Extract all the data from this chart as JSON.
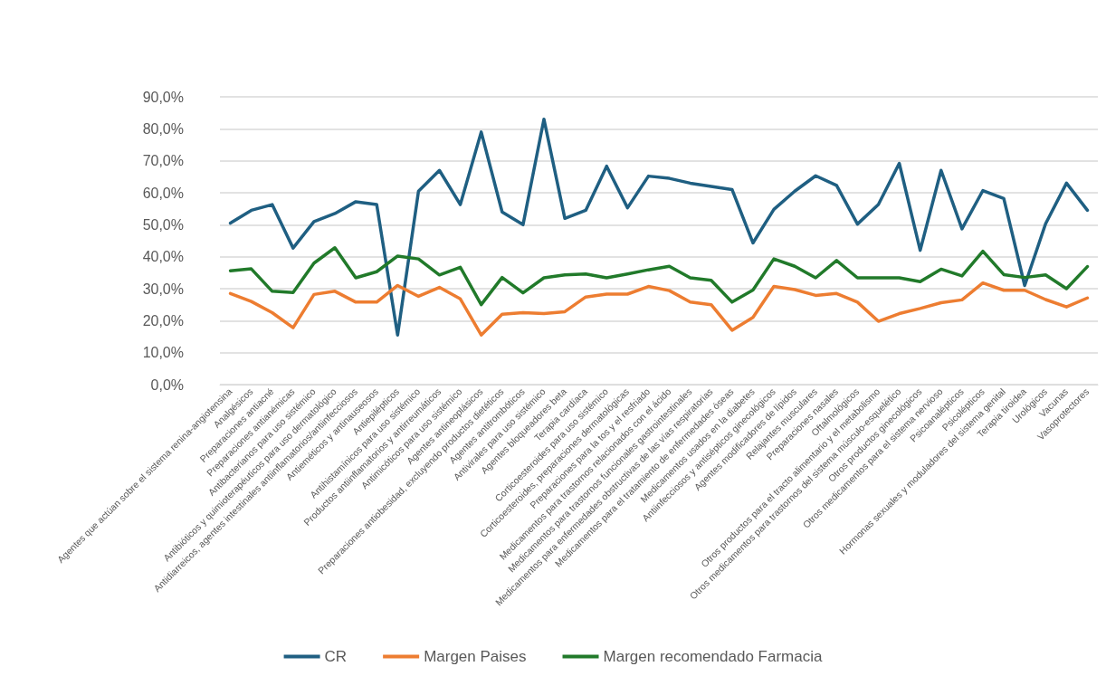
{
  "chart_data": {
    "type": "line",
    "categories": [
      "Agentes que actúan sobre el sistema renina-angiotensina",
      "Analgésicos",
      "Preparaciones antiacné",
      "Preparaciones antianémicas",
      "Antibacterianos para uso sistémico",
      "Antibióticos y quimioterapéuticos para uso dermatológico",
      "Antidiarreicos, agentes intestinales antiinflamatorios/antiinfecciosos",
      "Antieméticos y antinauseosos",
      "Antiepilépticos",
      "Antihistamínicos para uso sistémico",
      "Productos antiinflamatorios y antirreumáticos",
      "Antimicóticos para uso sistémico",
      "Agentes antineoplásicos",
      "Preparaciones antiobesidad, excluyendo productos dietéticos",
      "Agentes antitrombóticos",
      "Antivirales para uso sistémico",
      "Agentes bloqueadores beta",
      "Terapia cardíaca",
      "Corticoesteroides para uso sistémico",
      "Corticoesteroides, preparaciones dermatológicas",
      "Preparaciones para la tos y el resfriado",
      "Medicamentos para trastornos relacionados con el ácido",
      "Medicamentos para trastornos funcionales gastrointestinales",
      "Medicamentos para enfermedades obstructivas de las vías respiratorias",
      "Medicamentos para el tratamiento de enfermedades óseas",
      "Medicamentos usados en la diabetes",
      "Antiinfecciosos y antisépticos ginecológicos",
      "Agentes modificadores de lípidos",
      "Relajantes musculares",
      "Preparaciones nasales",
      "Oftalmológicos",
      "Otros productos para el tracto alimentario y el metabolismo",
      "Otros medicamentos para trastornos del sistema músculo-esquelético",
      "Otros productos ginecológicos",
      "Otros medicamentos para el sistema nervioso",
      "Psicoanalépticos",
      "Psicolépticos",
      "Hormonas sexuales y moduladores del sistema genital",
      "Terapia tiroidea",
      "Urológicos",
      "Vacunas",
      "Vasoprotectores"
    ],
    "series": [
      {
        "name": "CR",
        "color": "#1f5f82",
        "values": [
          50.5,
          54.5,
          56.3,
          42.7,
          51,
          53.5,
          57.2,
          56.3,
          15.5,
          60.5,
          67,
          56.3,
          79,
          54,
          50,
          83,
          52,
          54.5,
          68.3,
          55.3,
          65.2,
          64.5,
          63,
          62,
          61,
          44.3,
          54.8,
          60.5,
          65.3,
          62.3,
          50.2,
          56.3,
          69.2,
          42,
          67,
          48.7,
          60.7,
          58.2,
          31,
          50.3,
          63,
          54.5
        ]
      },
      {
        "name": "Margen Paises",
        "color": "#ed7d31",
        "values": [
          28.5,
          26,
          22.5,
          17.8,
          28.2,
          29.2,
          25.8,
          25.8,
          31,
          27.6,
          30.4,
          26.8,
          15.5,
          22,
          22.5,
          22.2,
          22.8,
          27.4,
          28.3,
          28.3,
          30.7,
          29.4,
          25.8,
          25,
          17,
          21,
          30.7,
          29.7,
          27.9,
          28.5,
          25.8,
          19.8,
          22.2,
          23.8,
          25.6,
          26.5,
          31.8,
          29.5,
          29.5,
          26.6,
          24.3,
          27.1
        ]
      },
      {
        "name": "Margen recomendado Farmacia",
        "color": "#217a2a",
        "values": [
          35.6,
          36.2,
          29.2,
          28.8,
          38,
          42.8,
          33.4,
          35.3,
          40.2,
          39.3,
          34.3,
          36.7,
          25,
          33.5,
          28.7,
          33.4,
          34.3,
          34.6,
          33.4,
          34.6,
          35.9,
          37,
          33.4,
          32.6,
          25.8,
          29.6,
          39.3,
          37,
          33.4,
          38.8,
          33.4,
          33.4,
          33.4,
          32.2,
          36.1,
          34,
          41.7,
          34.4,
          33.5,
          34.3,
          30,
          36.9
        ]
      }
    ],
    "ylim": [
      0,
      90
    ],
    "yticks": [
      {
        "value": 0,
        "label": "0,0%"
      },
      {
        "value": 10,
        "label": "10,0%"
      },
      {
        "value": 20,
        "label": "20,0%"
      },
      {
        "value": 30,
        "label": "30,0%"
      },
      {
        "value": 40,
        "label": "40,0%"
      },
      {
        "value": 50,
        "label": "50,0%"
      },
      {
        "value": 60,
        "label": "60,0%"
      },
      {
        "value": 70,
        "label": "70,0%"
      },
      {
        "value": 80,
        "label": "80,0%"
      },
      {
        "value": 90,
        "label": "90,0%"
      }
    ],
    "grid": "y",
    "legend": "bottom",
    "marker": "none",
    "line_style": "solid"
  }
}
